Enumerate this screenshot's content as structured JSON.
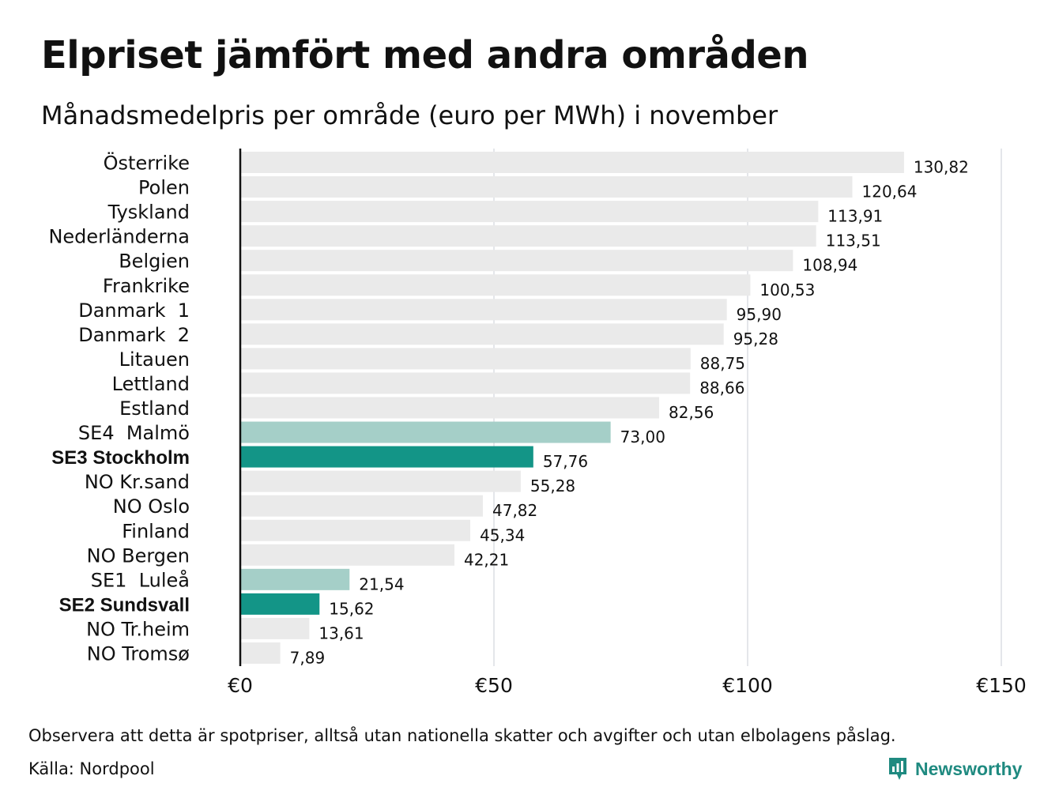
{
  "title": "Elpriset jämfört med andra områden",
  "subtitle": "Månadsmedelpris per område (euro per MWh) i november",
  "note": "Observera att detta är spotpriser, alltså utan nationella skatter och avgifter och utan elbolagens påslag.",
  "source": "Källa: Nordpool",
  "brand": "Newsworthy",
  "colors": {
    "default_bar": "#eaeaea",
    "highlight_light": "#a5cfc8",
    "highlight_dark": "#139587",
    "axis": "#111111",
    "grid": "#c9ccd6",
    "brand": "#1f8a80"
  },
  "chart_data": {
    "type": "bar",
    "orientation": "horizontal",
    "categories": [
      "Österrike",
      "Polen",
      "Tyskland",
      "Nederländerna",
      "Belgien",
      "Frankrike",
      "Danmark  1",
      "Danmark  2",
      "Litauen",
      "Lettland",
      "Estland",
      "SE4  Malmö",
      "SE3 Stockholm",
      "NO Kr.sand",
      "NO Oslo",
      "Finland",
      "NO Bergen",
      "SE1  Luleå",
      "SE2 Sundsvall",
      "NO Tr.heim",
      "NO Tromsø"
    ],
    "values": [
      130.82,
      120.64,
      113.91,
      113.51,
      108.94,
      100.53,
      95.9,
      95.28,
      88.75,
      88.66,
      82.56,
      73.0,
      57.76,
      55.28,
      47.82,
      45.34,
      42.21,
      21.54,
      15.62,
      13.61,
      7.89
    ],
    "value_labels": [
      "130,82",
      "120,64",
      "113,91",
      "113,51",
      "108,94",
      "100,53",
      "95,90",
      "95,28",
      "88,75",
      "88,66",
      "82,56",
      "73,00",
      "57,76",
      "55,28",
      "47,82",
      "45,34",
      "42,21",
      "21,54",
      "15,62",
      "13,61",
      "7,89"
    ],
    "highlight": [
      "none",
      "none",
      "none",
      "none",
      "none",
      "none",
      "none",
      "none",
      "none",
      "none",
      "none",
      "light",
      "dark",
      "none",
      "none",
      "none",
      "none",
      "light",
      "dark",
      "none",
      "none"
    ],
    "bold_labels": [
      false,
      false,
      false,
      false,
      false,
      false,
      false,
      false,
      false,
      false,
      false,
      false,
      true,
      false,
      false,
      false,
      false,
      false,
      true,
      false,
      false
    ],
    "xlim": [
      0,
      150
    ],
    "xticks": [
      0,
      50,
      100,
      150
    ],
    "xtick_labels": [
      "€0",
      "€50",
      "€100",
      "€150"
    ],
    "grid": true
  }
}
